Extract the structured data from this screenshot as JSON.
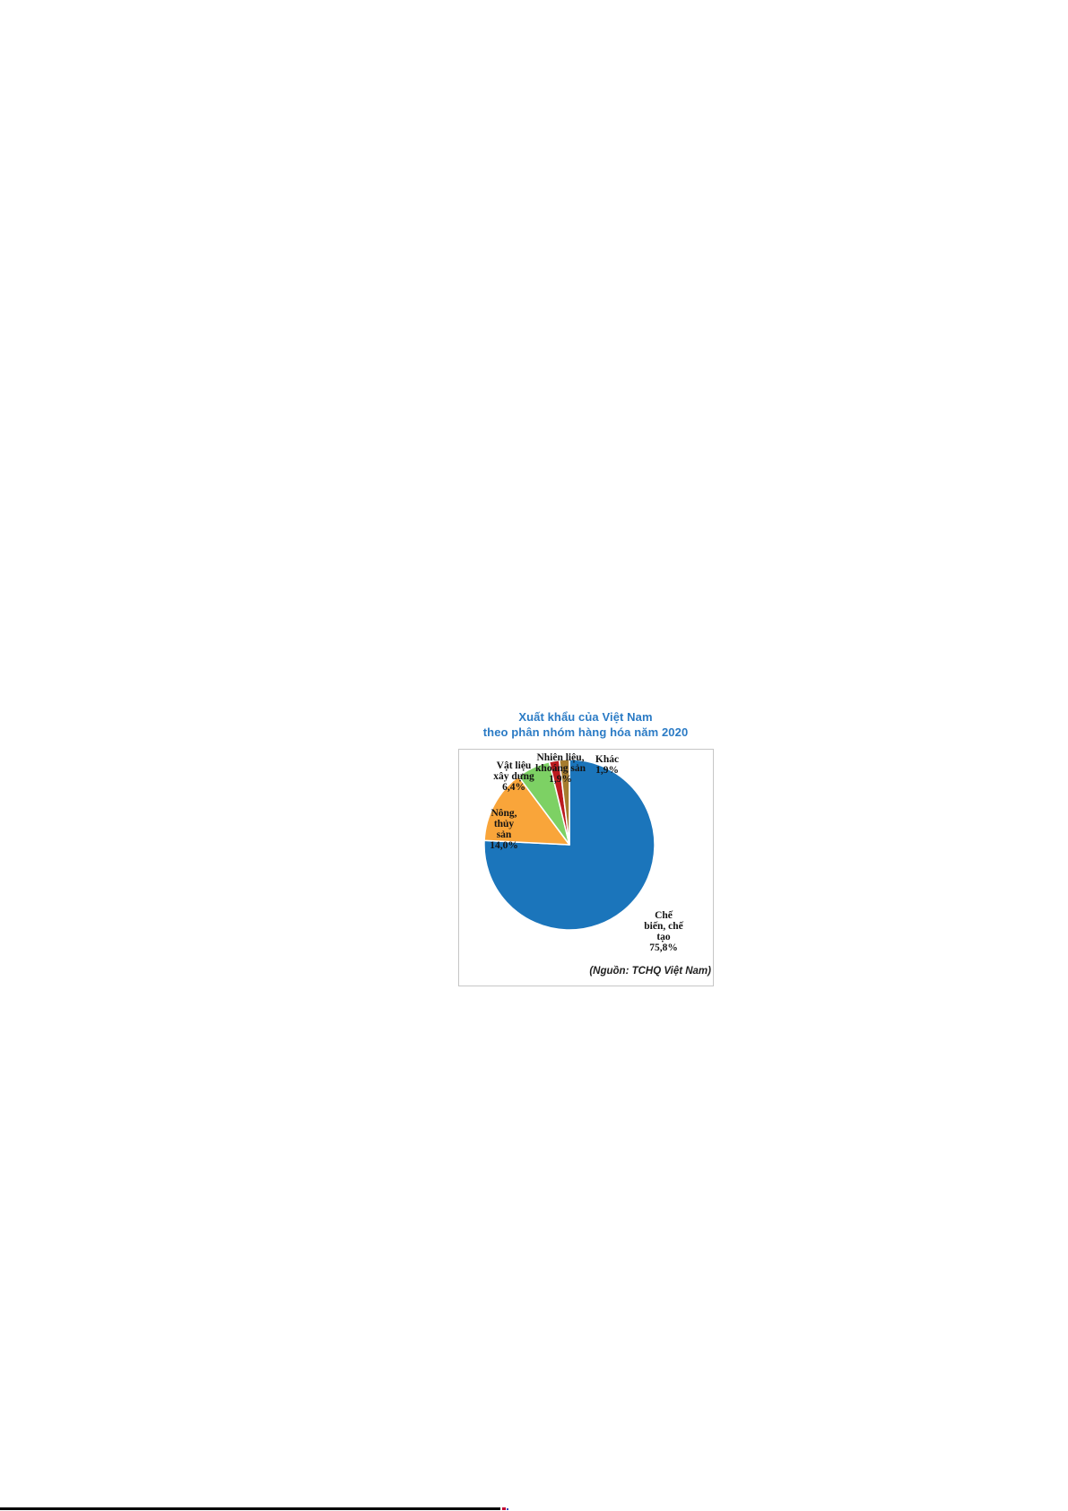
{
  "chart_data": {
    "type": "pie",
    "title": "Xuất khẩu của Việt Nam",
    "subtitle": "theo phân nhóm hàng hóa năm 2020",
    "title_color": "#2b7bc5",
    "direction": "clockwise",
    "start_angle_deg": 0,
    "legend_position": "none",
    "labels_position": "outside",
    "slices": [
      {
        "label": "Chế biến, chế tạo",
        "value": 75.8,
        "display_value": "75,8%",
        "color": "#1b75bb"
      },
      {
        "label": "Nông, thủy sản",
        "value": 14.0,
        "display_value": "14,0%",
        "color": "#f9a53a"
      },
      {
        "label": "Vật liệu xây dựng",
        "value": 6.4,
        "display_value": "6,4%",
        "color": "#7dd164"
      },
      {
        "label": "Nhiên liệu, khoáng sản",
        "value": 1.9,
        "display_value": "1,9%",
        "color": "#bb1a1e"
      },
      {
        "label": "Khác",
        "value": 1.9,
        "display_value": "1,9%",
        "color": "#a67c2e"
      }
    ],
    "source": "(Nguồn: TCHQ Việt Nam)"
  },
  "labels": {
    "khac": {
      "lines": [
        "Khác",
        "1,9%"
      ]
    },
    "nhien_lieu": {
      "lines": [
        "Nhiên liệu,",
        "khoáng sản",
        "1,9%"
      ]
    },
    "vat_lieu": {
      "lines": [
        "Vật liệu",
        "xây dựng",
        "6,4%"
      ]
    },
    "nong_thuy_san": {
      "lines": [
        "Nông,",
        "thủy",
        "sản",
        "14,0%"
      ]
    },
    "che_bien_che_tao": {
      "lines": [
        "Chế",
        "biến, chế",
        "tạo",
        "75,8%"
      ]
    }
  }
}
